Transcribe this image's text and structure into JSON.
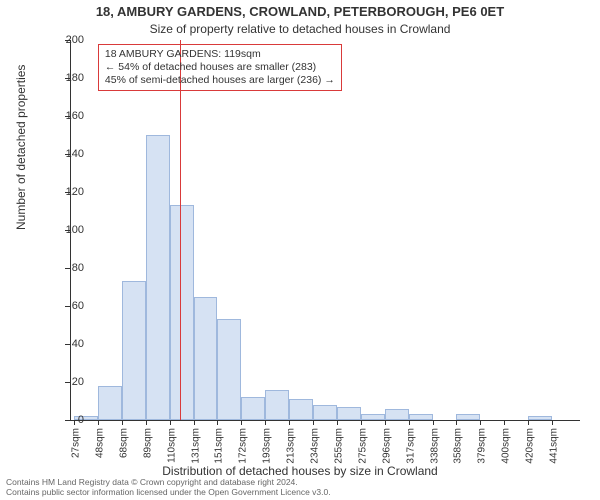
{
  "chart": {
    "type": "histogram",
    "title_main": "18, AMBURY GARDENS, CROWLAND, PETERBOROUGH, PE6 0ET",
    "title_sub": "Size of property relative to detached houses in Crowland",
    "title_fontsize": 13,
    "sub_fontsize": 12,
    "background_color": "#ffffff",
    "bar_fill": "#d6e2f3",
    "bar_stroke": "#9fb8dd",
    "axis_color": "#333333",
    "ref_line_color": "#d93a3a",
    "annotation_border": "#d93a3a",
    "x_label": "Distribution of detached houses by size in Crowland",
    "y_label": "Number of detached properties",
    "label_fontsize": 12,
    "tick_fontsize": 11,
    "xtick_fontsize": 10,
    "ylim": [
      0,
      200
    ],
    "ytick_step": 20,
    "x_categories": [
      "27sqm",
      "48sqm",
      "68sqm",
      "89sqm",
      "110sqm",
      "131sqm",
      "151sqm",
      "172sqm",
      "193sqm",
      "213sqm",
      "234sqm",
      "255sqm",
      "275sqm",
      "296sqm",
      "317sqm",
      "338sqm",
      "358sqm",
      "379sqm",
      "400sqm",
      "420sqm",
      "441sqm"
    ],
    "values": [
      2,
      18,
      73,
      150,
      113,
      65,
      53,
      12,
      16,
      11,
      8,
      7,
      3,
      6,
      3,
      0,
      3,
      0,
      0,
      2,
      0
    ],
    "bar_width_ratio": 1.0,
    "ref_line_category_index": 4,
    "ref_line_offset_in_bin": 0.43,
    "annotation": {
      "lines": [
        "18 AMBURY GARDENS: 119sqm",
        "← 54% of detached houses are smaller (283)",
        "45% of semi-detached houses are larger (236) →"
      ],
      "x_bin_index": 1,
      "x_offset_in_bin": 0.0,
      "y_value_top": 198,
      "fontsize": 10.5
    },
    "footer_lines": [
      "Contains HM Land Registry data © Crown copyright and database right 2024.",
      "Contains public sector information licensed under the Open Government Licence v3.0."
    ],
    "footer_color": "#666666",
    "footer_fontsize": 8.5
  }
}
